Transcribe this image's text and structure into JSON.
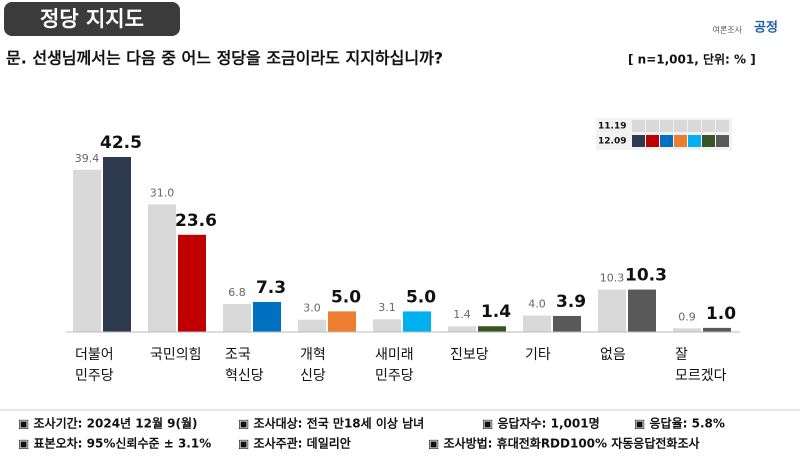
{
  "header": {
    "title": "정당 지지도",
    "logo_small": "여론조사",
    "logo": "공정"
  },
  "chart_data": {
    "type": "bar",
    "title": "문. 선생님께서는 다음 중 어느 정당을 조금이라도 지지하십니까?",
    "subtitle": "[ n=1,001, 단위: % ]",
    "categories": [
      "더불어\n민주당",
      "국민의힘",
      "조국\n혁신당",
      "개혁\n신당",
      "새미래\n민주당",
      "진보당",
      "기타",
      "없음",
      "잘\n모르겠다"
    ],
    "series": [
      {
        "name": "11.19",
        "color": "#d9d9d9",
        "values": [
          39.4,
          31.0,
          6.8,
          3.0,
          3.1,
          1.4,
          4.0,
          10.3,
          0.9
        ],
        "value_labels": [
          "39.4",
          "31.0",
          "6.8",
          "3.0",
          "3.1",
          "1.4",
          "4.0",
          "10.3",
          "0.9"
        ]
      },
      {
        "name": "12.09",
        "colors": [
          "#2e3a4f",
          "#c00000",
          "#0070c0",
          "#ed7d31",
          "#00b0f0",
          "#375623",
          "#595959",
          "#595959",
          "#595959"
        ],
        "values": [
          42.5,
          23.6,
          7.3,
          5.0,
          5.0,
          1.4,
          3.9,
          10.3,
          1.0
        ],
        "value_labels": [
          "42.5",
          "23.6",
          "7.3",
          "5.0",
          "5.0",
          "1.4",
          "3.9",
          "10.3",
          "1.0"
        ]
      }
    ]
  },
  "footer": {
    "rows": [
      [
        "▣ 조사기간: 2024년 12월 9(월)",
        "▣ 조사대상: 전국 만18세 이상 남녀",
        "▣ 응답자수: 1,001명",
        "▣ 응답율: 5.8%"
      ],
      [
        "▣ 표본오차: 95%신뢰수준 ± 3.1%",
        "▣ 조사주관: 데일리안",
        "▣ 조사방법: 휴대전화RDD100% 자동응답전화조사"
      ]
    ]
  }
}
